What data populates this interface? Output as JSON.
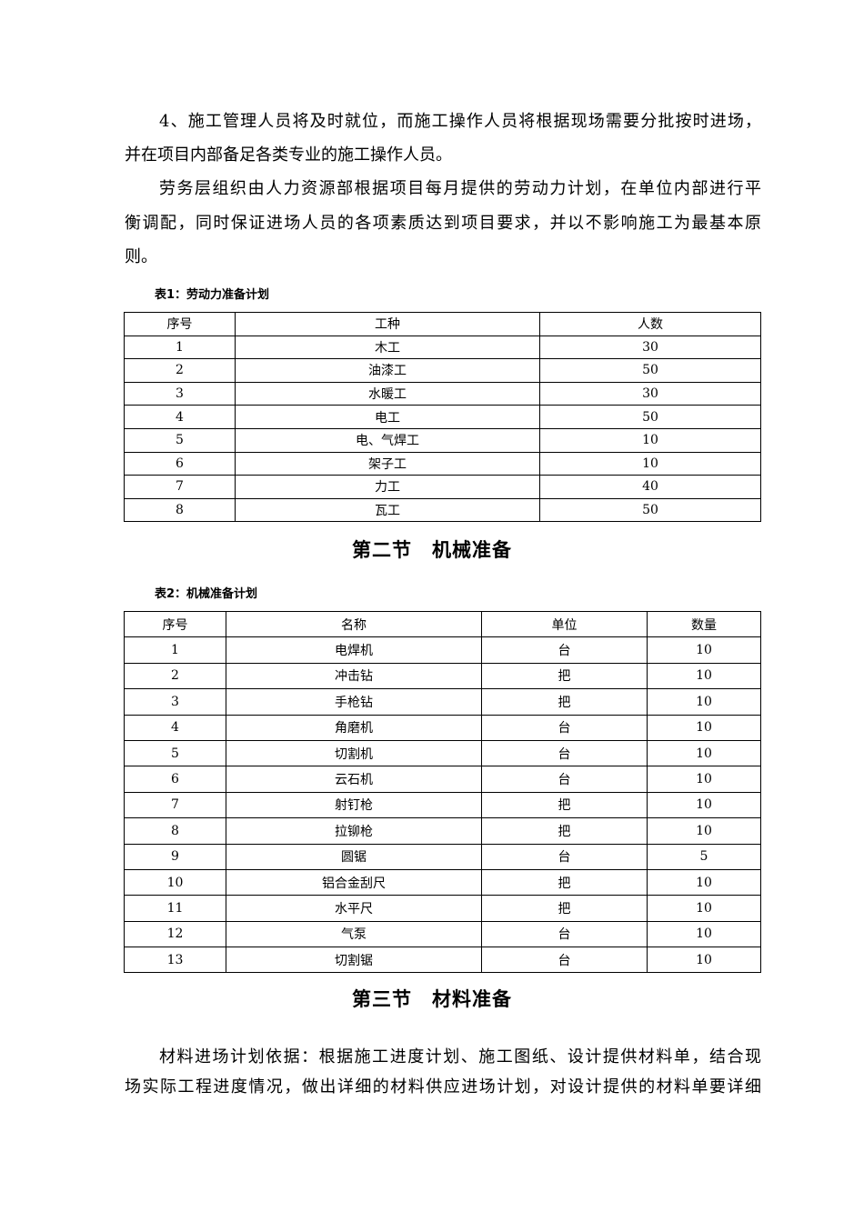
{
  "paragraphs": [
    {
      "lines": [
        "4、施工管理人员将及时就位，而施工操作人员将根据现场需要分批按时进场，",
        "并在项目内部备足各类专业的施工操作人员。"
      ]
    },
    {
      "lines": [
        "劳务层组织由人力资源部根据项目每月提供的劳动力计划，在单位内部进行平",
        "衡调配，同时保证进场人员的各项素质达到项目要求，并以不影响施工为最基本原",
        "则。"
      ]
    },
    {
      "lines": [
        "材料进场计划依据：根据施工进度计划、施工图纸、设计提供材料单，结合现",
        "场实际工程进度情况，做出详细的材料供应进场计划，对设计提供的材料单要详细"
      ]
    }
  ],
  "table1": {
    "caption": "表1：劳动力准备计划",
    "headers": [
      "序号",
      "工种",
      "人数"
    ],
    "rows": [
      [
        "1",
        "木工",
        "30"
      ],
      [
        "2",
        "油漆工",
        "50"
      ],
      [
        "3",
        "水暖工",
        "30"
      ],
      [
        "4",
        "电工",
        "50"
      ],
      [
        "5",
        "电、气焊工",
        "10"
      ],
      [
        "6",
        "架子工",
        "10"
      ],
      [
        "7",
        "力工",
        "40"
      ],
      [
        "8",
        "瓦工",
        "50"
      ]
    ]
  },
  "section2": "第二节　机械准备",
  "table2": {
    "caption": "表2：机械准备计划",
    "headers": [
      "序号",
      "名称",
      "单位",
      "数量"
    ],
    "rows": [
      [
        "1",
        "电焊机",
        "台",
        "10"
      ],
      [
        "2",
        "冲击钻",
        "把",
        "10"
      ],
      [
        "3",
        "手枪钻",
        "把",
        "10"
      ],
      [
        "4",
        "角磨机",
        "台",
        "10"
      ],
      [
        "5",
        "切割机",
        "台",
        "10"
      ],
      [
        "6",
        "云石机",
        "台",
        "10"
      ],
      [
        "7",
        "射钉枪",
        "把",
        "10"
      ],
      [
        "8",
        "拉铆枪",
        "把",
        "10"
      ],
      [
        "9",
        "圆锯",
        "台",
        "5"
      ],
      [
        "10",
        "铝合金刮尺",
        "把",
        "10"
      ],
      [
        "11",
        "水平尺",
        "把",
        "10"
      ],
      [
        "12",
        "气泵",
        "台",
        "10"
      ],
      [
        "13",
        "切割锯",
        "台",
        "10"
      ]
    ]
  },
  "section3": "第三节　材料准备"
}
